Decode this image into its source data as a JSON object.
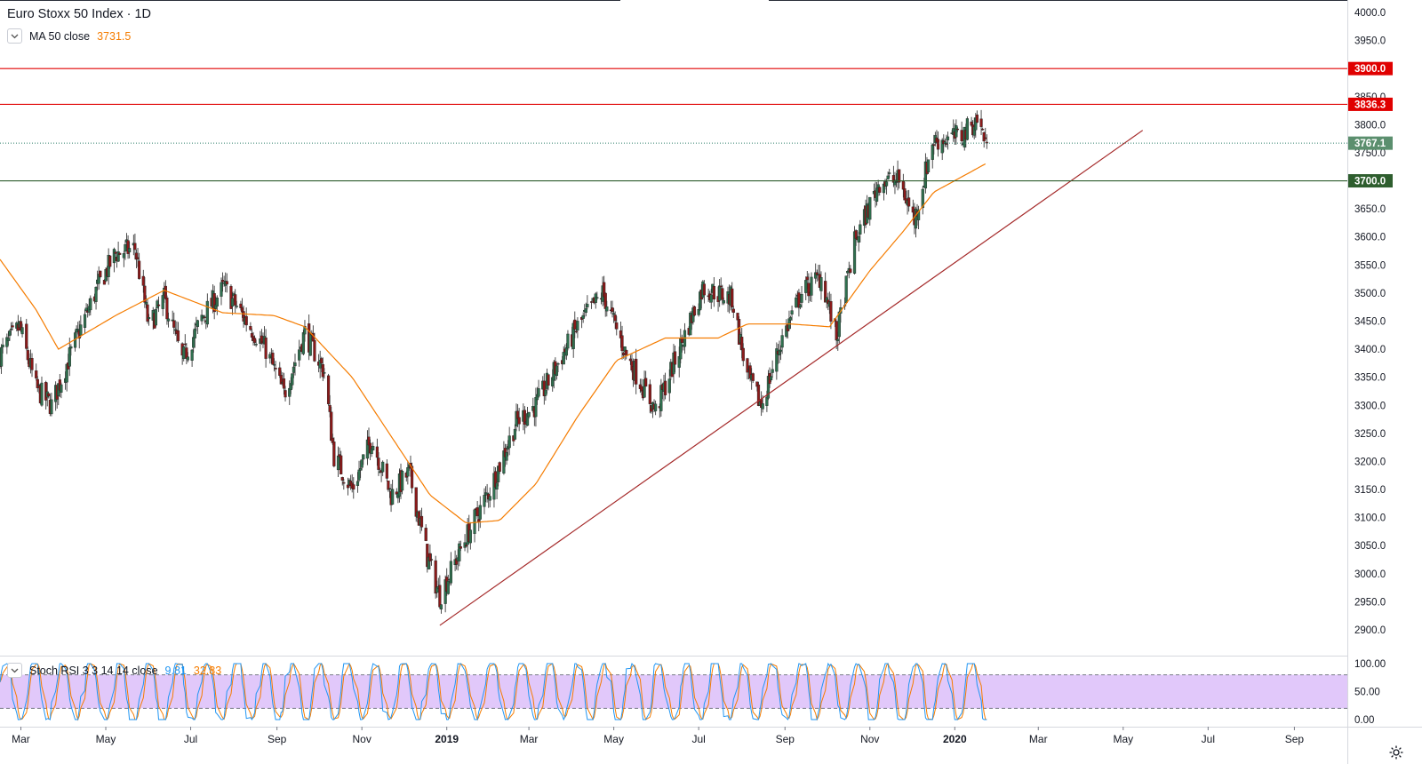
{
  "header": {
    "symbol_title": "Euro Stoxx 50 Index · 1D",
    "ma_label": "MA 50 close",
    "ma_value": "3731.5"
  },
  "stoch": {
    "label": "Stoch RSI 3 3 14 14 close",
    "k_value": "9.81",
    "d_value": "32.83"
  },
  "colors": {
    "up": "#26a69a",
    "candle_up": "#2f6f4e",
    "candle_down": "#8b1a1a",
    "ma": "#f57c00",
    "resistance": "#e00000",
    "support": "#2e5e2e",
    "trend": "#a52a2a",
    "stoch_k": "#2196f3",
    "stoch_d": "#f57c00",
    "stoch_band": "#e1c8fa"
  },
  "chart_data": [
    {
      "type": "candlestick",
      "title": "Euro Stoxx 50 Index · 1D",
      "x_tick_labels": [
        "Mar",
        "May",
        "Jul",
        "Sep",
        "Nov",
        "2019",
        "Mar",
        "May",
        "Jul",
        "Sep",
        "Nov",
        "2020",
        "Mar",
        "May",
        "Jul",
        "Sep"
      ],
      "y_ticks": [
        2900,
        2950,
        3000,
        3050,
        3100,
        3150,
        3200,
        3250,
        3300,
        3350,
        3400,
        3450,
        3500,
        3550,
        3600,
        3650,
        3700,
        3750,
        3800,
        3850,
        3900,
        3950,
        4000
      ],
      "ylim": [
        2860,
        4015
      ],
      "close_path": [
        [
          "2018-02-14",
          3390
        ],
        [
          "2018-02-28",
          3440
        ],
        [
          "2018-03-12",
          3330
        ],
        [
          "2018-03-23",
          3300
        ],
        [
          "2018-04-10",
          3420
        ],
        [
          "2018-04-25",
          3510
        ],
        [
          "2018-05-08",
          3570
        ],
        [
          "2018-05-22",
          3580
        ],
        [
          "2018-06-01",
          3440
        ],
        [
          "2018-06-12",
          3490
        ],
        [
          "2018-06-25",
          3380
        ],
        [
          "2018-07-10",
          3460
        ],
        [
          "2018-07-25",
          3510
        ],
        [
          "2018-08-10",
          3450
        ],
        [
          "2018-08-24",
          3400
        ],
        [
          "2018-09-06",
          3320
        ],
        [
          "2018-09-21",
          3430
        ],
        [
          "2018-10-05",
          3360
        ],
        [
          "2018-10-12",
          3210
        ],
        [
          "2018-10-25",
          3150
        ],
        [
          "2018-11-08",
          3240
        ],
        [
          "2018-11-22",
          3140
        ],
        [
          "2018-12-05",
          3180
        ],
        [
          "2018-12-18",
          3030
        ],
        [
          "2018-12-27",
          2960
        ],
        [
          "2019-01-14",
          3060
        ],
        [
          "2019-02-01",
          3150
        ],
        [
          "2019-02-20",
          3270
        ],
        [
          "2019-03-06",
          3300
        ],
        [
          "2019-03-21",
          3370
        ],
        [
          "2019-04-05",
          3440
        ],
        [
          "2019-04-23",
          3500
        ],
        [
          "2019-05-10",
          3390
        ],
        [
          "2019-05-31",
          3290
        ],
        [
          "2019-06-14",
          3380
        ],
        [
          "2019-07-04",
          3510
        ],
        [
          "2019-07-25",
          3490
        ],
        [
          "2019-08-05",
          3350
        ],
        [
          "2019-08-15",
          3300
        ],
        [
          "2019-08-30",
          3420
        ],
        [
          "2019-09-13",
          3500
        ],
        [
          "2019-09-27",
          3530
        ],
        [
          "2019-10-08",
          3420
        ],
        [
          "2019-10-21",
          3590
        ],
        [
          "2019-11-08",
          3700
        ],
        [
          "2019-11-22",
          3700
        ],
        [
          "2019-12-03",
          3630
        ],
        [
          "2019-12-16",
          3770
        ],
        [
          "2020-01-06",
          3780
        ],
        [
          "2020-01-17",
          3810
        ],
        [
          "2020-01-24",
          3767.1
        ]
      ],
      "last_close": 3767.1,
      "ma50_path": [
        [
          "2018-02-14",
          3560
        ],
        [
          "2018-03-12",
          3470
        ],
        [
          "2018-03-28",
          3400
        ],
        [
          "2018-05-08",
          3460
        ],
        [
          "2018-06-12",
          3505
        ],
        [
          "2018-07-24",
          3465
        ],
        [
          "2018-08-30",
          3460
        ],
        [
          "2018-09-21",
          3440
        ],
        [
          "2018-10-25",
          3350
        ],
        [
          "2018-11-22",
          3245
        ],
        [
          "2018-12-20",
          3140
        ],
        [
          "2019-01-15",
          3090
        ],
        [
          "2019-02-08",
          3095
        ],
        [
          "2019-03-06",
          3160
        ],
        [
          "2019-04-05",
          3280
        ],
        [
          "2019-05-03",
          3380
        ],
        [
          "2019-06-07",
          3420
        ],
        [
          "2019-07-15",
          3420
        ],
        [
          "2019-08-05",
          3445
        ],
        [
          "2019-09-05",
          3445
        ],
        [
          "2019-10-03",
          3440
        ],
        [
          "2019-11-01",
          3540
        ],
        [
          "2019-11-25",
          3610
        ],
        [
          "2019-12-17",
          3680
        ],
        [
          "2020-01-24",
          3731.5
        ]
      ],
      "horizontal_levels": [
        {
          "value": 3900.0,
          "label": "3900.0",
          "color": "resistance"
        },
        {
          "value": 3836.3,
          "label": "3836.3",
          "color": "resistance"
        },
        {
          "value": 3700.0,
          "label": "3700.0",
          "color": "support"
        }
      ],
      "trendline": [
        [
          "2018-12-27",
          2908
        ],
        [
          "2020-05-15",
          3790
        ]
      ],
      "legend": [
        {
          "name": "MA 50 close",
          "value": "3731.5"
        }
      ]
    },
    {
      "type": "line",
      "title": "Stoch RSI 3 3 14 14 close",
      "y_ticks": [
        0,
        50,
        100
      ],
      "y_tick_labels": [
        "0.00",
        "50.00",
        "100.00"
      ],
      "ylim": [
        -5,
        105
      ],
      "band": [
        20,
        80
      ],
      "series": [
        {
          "name": "K",
          "last": "9.81"
        },
        {
          "name": "D",
          "last": "32.83"
        }
      ]
    }
  ]
}
